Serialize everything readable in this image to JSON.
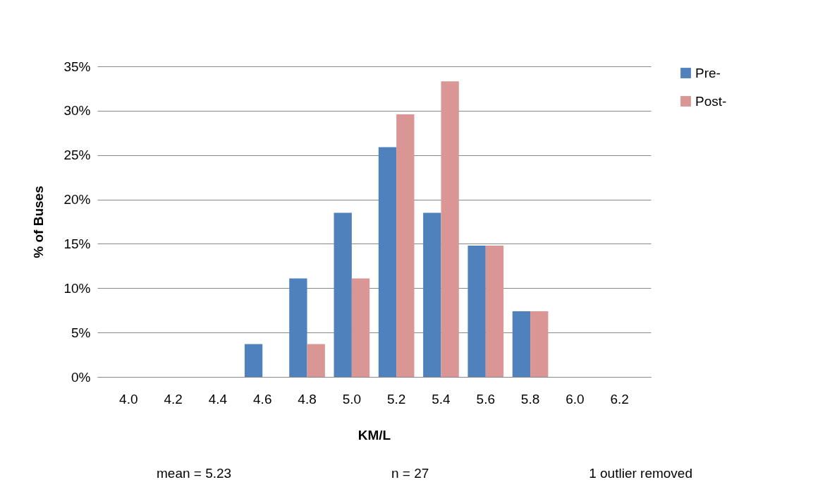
{
  "chart_data": {
    "type": "bar",
    "xlabel": "KM/L",
    "ylabel": "% of Buses",
    "categories": [
      "4.0",
      "4.2",
      "4.4",
      "4.6",
      "4.8",
      "5.0",
      "5.2",
      "5.4",
      "5.6",
      "5.8",
      "6.0",
      "6.2"
    ],
    "series": [
      {
        "name": "Pre-",
        "color": "#4f81bd",
        "values": [
          0,
          0,
          0,
          3.7,
          11.1,
          18.5,
          25.9,
          18.5,
          14.8,
          7.4,
          0,
          0
        ]
      },
      {
        "name": "Post-",
        "color": "#d99694",
        "values": [
          0,
          0,
          0,
          0,
          3.7,
          11.1,
          29.6,
          33.3,
          14.8,
          7.4,
          0,
          0
        ]
      }
    ],
    "ylim": [
      0,
      35
    ],
    "yticks": [
      {
        "value": 0,
        "label": "0%"
      },
      {
        "value": 5,
        "label": "5%"
      },
      {
        "value": 10,
        "label": "10%"
      },
      {
        "value": 15,
        "label": "15%"
      },
      {
        "value": 20,
        "label": "20%"
      },
      {
        "value": 25,
        "label": "25%"
      },
      {
        "value": 30,
        "label": "30%"
      },
      {
        "value": 35,
        "label": "35%"
      }
    ],
    "grid": "y",
    "legend": "right",
    "annotations": [
      "mean = 5.23",
      "n = 27",
      "1 outlier removed"
    ]
  }
}
